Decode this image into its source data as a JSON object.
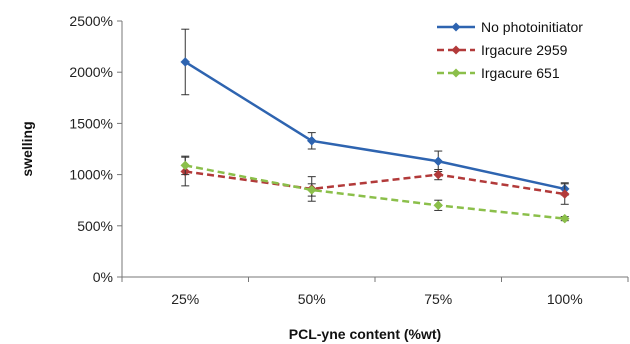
{
  "chart_data": {
    "type": "line",
    "xlabel": "PCL-yne content (%wt)",
    "ylabel": "swelling",
    "categories": [
      "25%",
      "50%",
      "75%",
      "100%"
    ],
    "y_ticks": [
      "0%",
      "500%",
      "1000%",
      "1500%",
      "2000%",
      "2500%"
    ],
    "ylim": [
      0,
      2500
    ],
    "grid": false,
    "legend_position": "top-right",
    "series": [
      {
        "name": "No photoinitiator",
        "color": "#2E64B0",
        "dash": "solid",
        "marker": "diamond",
        "values": [
          2100,
          1330,
          1130,
          860
        ],
        "errors": [
          320,
          80,
          100,
          60
        ]
      },
      {
        "name": "Irgacure 2959",
        "color": "#B23A3A",
        "dash": "dashed",
        "marker": "diamond",
        "values": [
          1030,
          860,
          1000,
          810
        ],
        "errors": [
          140,
          120,
          50,
          100
        ]
      },
      {
        "name": "Irgacure 651",
        "color": "#8BBF4A",
        "dash": "dashed",
        "marker": "diamond",
        "values": [
          1090,
          850,
          700,
          570
        ],
        "errors": [
          90,
          60,
          50,
          20
        ]
      }
    ]
  }
}
